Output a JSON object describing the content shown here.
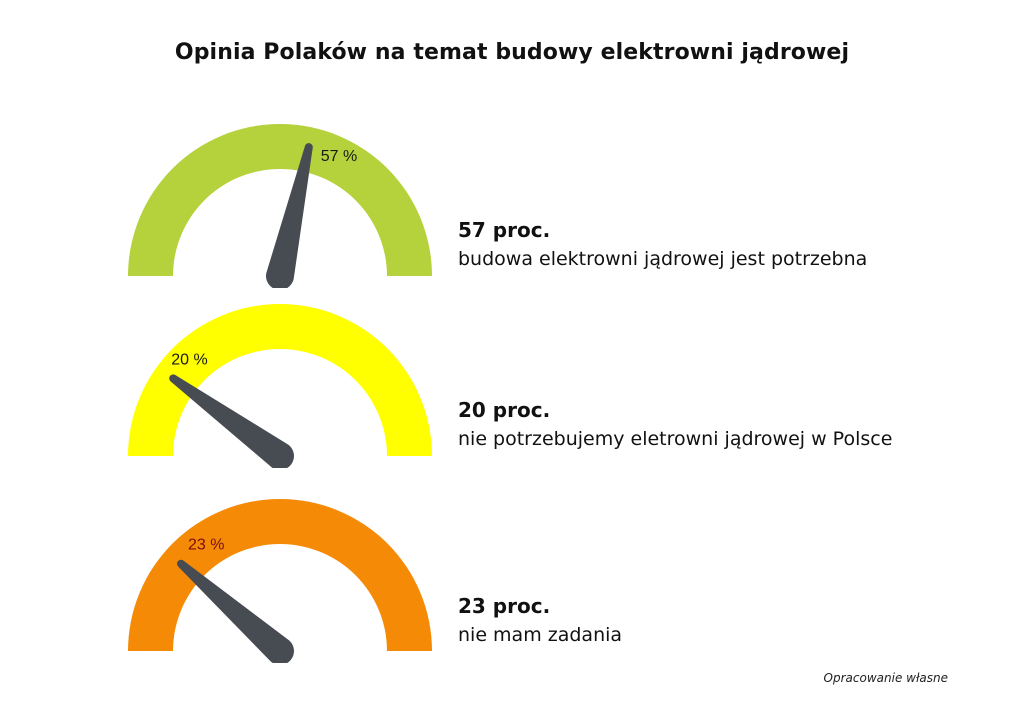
{
  "title": "Opinia Polaków na temat budowy elektrowni jądrowej",
  "source_note": "Opracowanie własne",
  "gauges": [
    {
      "value": 57,
      "label": "57 %",
      "caption_value": "57 proc.",
      "caption_text": "budowa elektrowni jądrowej jest potrzebna",
      "color": "#b5d13c",
      "label_color": "#1a1a1a"
    },
    {
      "value": 20,
      "label": "20 %",
      "caption_value": "20 proc.",
      "caption_text": "nie potrzebujemy eletrowni jądrowej w Polsce",
      "color": "#ffff00",
      "label_color": "#1a1a1a"
    },
    {
      "value": 23,
      "label": "23 %",
      "caption_value": "23 proc.",
      "caption_text": "nie mam zadania",
      "color": "#f58a07",
      "label_color": "#7a0f0f"
    }
  ],
  "needle_color": "#474b52",
  "chart_data": {
    "type": "gauge",
    "title": "Opinia Polaków na temat budowy elektrowni jądrowej",
    "categories": [
      "budowa elektrowni jądrowej jest potrzebna",
      "nie potrzebujemy eletrowni jądrowej w Polsce",
      "nie mam zadania"
    ],
    "values": [
      57,
      20,
      23
    ],
    "unit": "%",
    "value_labels": [
      "57 %",
      "20 %",
      "23 %"
    ],
    "colors": [
      "#b5d13c",
      "#ffff00",
      "#f58a07"
    ],
    "range": [
      0,
      100
    ],
    "annotation": "Opracowanie własne"
  }
}
